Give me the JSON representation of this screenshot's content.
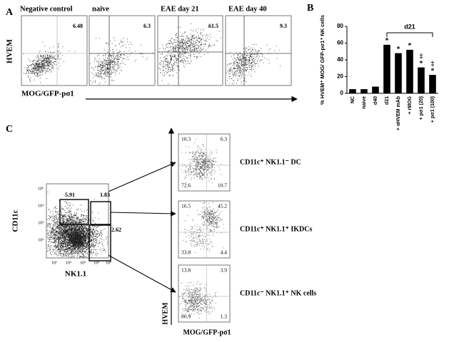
{
  "panel_a": {
    "label": "A",
    "y_label": "HVEM",
    "x_label": "MOG/GFP-pσ1",
    "plots": [
      {
        "title": "Negative control",
        "value": 6.48
      },
      {
        "title": "naïve",
        "value": 6.3
      },
      {
        "title": "EAE day  21",
        "value": 61.5
      },
      {
        "title": "EAE day 40",
        "value": 9.3
      }
    ]
  },
  "panel_b": {
    "label": "B"
  },
  "chart_data": {
    "type": "bar",
    "y_label": "% HVEM⁺ MOG/ GFP-pσ1⁺ NK cells",
    "categories": [
      "NC",
      "naive",
      "d40",
      "d21",
      "+ αHVEM mAb",
      "+ rMOG",
      "+ pσ1 (20)",
      "+ pσ1 (100)"
    ],
    "values": [
      5,
      5,
      8,
      58,
      48,
      52,
      31,
      22
    ],
    "color": "#000000",
    "ylim": [
      0,
      80
    ],
    "yticks": [
      0,
      20,
      40,
      60,
      80
    ],
    "significance": [
      null,
      null,
      null,
      "*",
      "*",
      "*",
      "*",
      "*"
    ],
    "significance_d21": [
      null,
      null,
      null,
      null,
      null,
      null,
      "‡",
      "‡"
    ],
    "bracket_label": "d21"
  },
  "panel_c": {
    "label": "C",
    "gating": {
      "y_label": "CD11c",
      "x_label": "NK1.1",
      "xticks": [
        "10¹",
        "10²",
        "10³",
        "10⁴",
        "10⁵"
      ],
      "yticks": [
        "10²",
        "10³",
        "10⁴",
        "10⁵"
      ],
      "gates": [
        5.91,
        1.83,
        2.62
      ]
    },
    "y_label": "HVEM",
    "x_label": "MOG/GFP-pσ1",
    "plots": [
      {
        "label": "CD11c⁺ NK1.1⁻ DC",
        "quadrants": [
          10.3,
          6.3,
          72.6,
          10.7
        ]
      },
      {
        "label": "CD11c⁺ NK1.1⁺ IKDCs",
        "quadrants": [
          16.5,
          45.2,
          33.8,
          4.4
        ]
      },
      {
        "label": "CD11c⁻ NK1.1⁺ NK cells",
        "quadrants": [
          13.8,
          3.9,
          80.9,
          1.3
        ]
      }
    ]
  }
}
